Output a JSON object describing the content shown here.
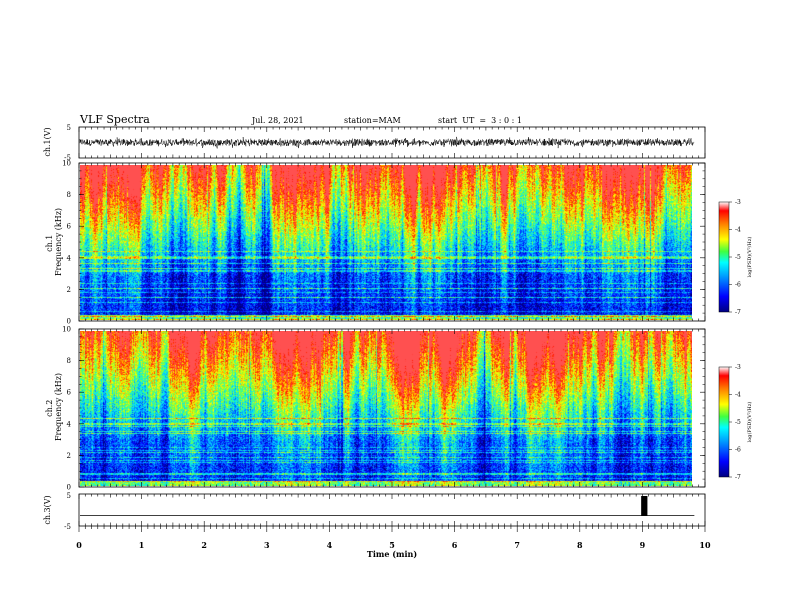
{
  "header": {
    "title": "VLF Spectra",
    "date": "Jul. 28, 2021",
    "station": "station=MAM",
    "start": "start  UT  =  3 : 0 : 1"
  },
  "chart_data": [
    {
      "type": "line",
      "name": "ch1-waveform",
      "ylabel": "ch.1(V)",
      "ylim": [
        -5,
        5
      ],
      "yticks": [
        "5",
        "-5"
      ],
      "xlim": [
        0,
        10
      ]
    },
    {
      "type": "heatmap",
      "name": "ch1-spectrogram",
      "ylabel": "ch.1 Frequency (kHz)",
      "ylim": [
        0,
        10
      ],
      "yticks": [
        "0",
        "2",
        "4",
        "6",
        "8",
        "10"
      ],
      "xlim": [
        0,
        10
      ],
      "data_end_min": 9.83,
      "colorbar": {
        "label": "log(PSD)(V²/Hz)",
        "range": [
          -7,
          -3
        ],
        "ticks": [
          "-3",
          "-4",
          "-5",
          "-6",
          "-7"
        ]
      }
    },
    {
      "type": "heatmap",
      "name": "ch2-spectrogram",
      "ylabel": "ch.2 Frequency (kHz)",
      "ylim": [
        0,
        10
      ],
      "yticks": [
        "0",
        "2",
        "4",
        "6",
        "8",
        "10"
      ],
      "xlim": [
        0,
        10
      ],
      "data_end_min": 9.83,
      "colorbar": {
        "label": "log(PSD)(V²/Hz)",
        "range": [
          -7,
          -3
        ],
        "ticks": [
          "-3",
          "-4",
          "-5",
          "-6",
          "-7"
        ]
      }
    },
    {
      "type": "line",
      "name": "ch3-waveform",
      "ylabel": "ch.3(V)",
      "ylim": [
        -5,
        5
      ],
      "yticks": [
        "5",
        "-5"
      ],
      "xlim": [
        0,
        10
      ],
      "baseline": -2,
      "pulse": {
        "start_min": 8.98,
        "end_min": 9.08,
        "high": 5,
        "low": -2
      }
    }
  ],
  "xaxis": {
    "label": "Time (min)",
    "ticks": [
      "0",
      "1",
      "2",
      "3",
      "4",
      "5",
      "6",
      "7",
      "8",
      "9",
      "10"
    ]
  },
  "colors": {
    "axis": "#000000",
    "background": "#ffffff"
  }
}
